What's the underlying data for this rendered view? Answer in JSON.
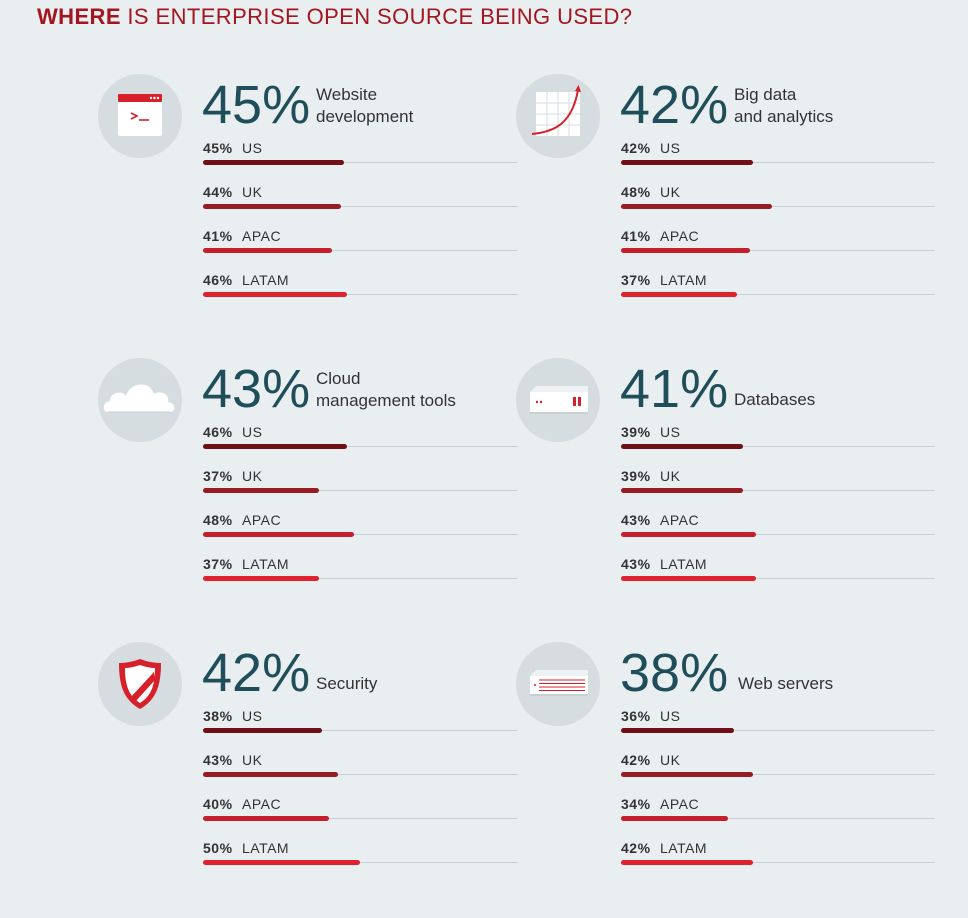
{
  "title": {
    "bold": "WHERE",
    "rest": "IS ENTERPRISE OPEN SOURCE BEING USED?"
  },
  "colors": {
    "US": "#6e1015",
    "UK": "#981c24",
    "APAC": "#c51f2b",
    "LATAM": "#e0222f",
    "title": "#a3161f",
    "big_number": "#1f4e5a"
  },
  "chart_data": [
    {
      "type": "bar",
      "icon": "terminal-window-icon",
      "total": "45%",
      "category": [
        "Website",
        "development"
      ],
      "regions": [
        {
          "label": "US",
          "value": 45,
          "text": "45%"
        },
        {
          "label": "UK",
          "value": 44,
          "text": "44%"
        },
        {
          "label": "APAC",
          "value": 41,
          "text": "41%"
        },
        {
          "label": "LATAM",
          "value": 46,
          "text": "46%"
        }
      ]
    },
    {
      "type": "bar",
      "icon": "rising-chart-icon",
      "total": "42%",
      "category": [
        "Big data",
        "and analytics"
      ],
      "regions": [
        {
          "label": "US",
          "value": 42,
          "text": "42%"
        },
        {
          "label": "UK",
          "value": 48,
          "text": "48%"
        },
        {
          "label": "APAC",
          "value": 41,
          "text": "41%"
        },
        {
          "label": "LATAM",
          "value": 37,
          "text": "37%"
        }
      ]
    },
    {
      "type": "bar",
      "icon": "cloud-icon",
      "total": "43%",
      "category": [
        "Cloud",
        "management tools"
      ],
      "regions": [
        {
          "label": "US",
          "value": 46,
          "text": "46%"
        },
        {
          "label": "UK",
          "value": 37,
          "text": "37%"
        },
        {
          "label": "APAC",
          "value": 48,
          "text": "48%"
        },
        {
          "label": "LATAM",
          "value": 37,
          "text": "37%"
        }
      ]
    },
    {
      "type": "bar",
      "icon": "database-server-icon",
      "total": "41%",
      "category": [
        "Databases"
      ],
      "regions": [
        {
          "label": "US",
          "value": 39,
          "text": "39%"
        },
        {
          "label": "UK",
          "value": 39,
          "text": "39%"
        },
        {
          "label": "APAC",
          "value": 43,
          "text": "43%"
        },
        {
          "label": "LATAM",
          "value": 43,
          "text": "43%"
        }
      ]
    },
    {
      "type": "bar",
      "icon": "shield-icon",
      "total": "42%",
      "category": [
        "Security"
      ],
      "regions": [
        {
          "label": "US",
          "value": 38,
          "text": "38%"
        },
        {
          "label": "UK",
          "value": 43,
          "text": "43%"
        },
        {
          "label": "APAC",
          "value": 40,
          "text": "40%"
        },
        {
          "label": "LATAM",
          "value": 50,
          "text": "50%"
        }
      ]
    },
    {
      "type": "bar",
      "icon": "web-server-icon",
      "total": "38%",
      "category": [
        "Web servers"
      ],
      "regions": [
        {
          "label": "US",
          "value": 36,
          "text": "36%"
        },
        {
          "label": "UK",
          "value": 42,
          "text": "42%"
        },
        {
          "label": "APAC",
          "value": 34,
          "text": "34%"
        },
        {
          "label": "LATAM",
          "value": 42,
          "text": "42%"
        }
      ]
    }
  ]
}
